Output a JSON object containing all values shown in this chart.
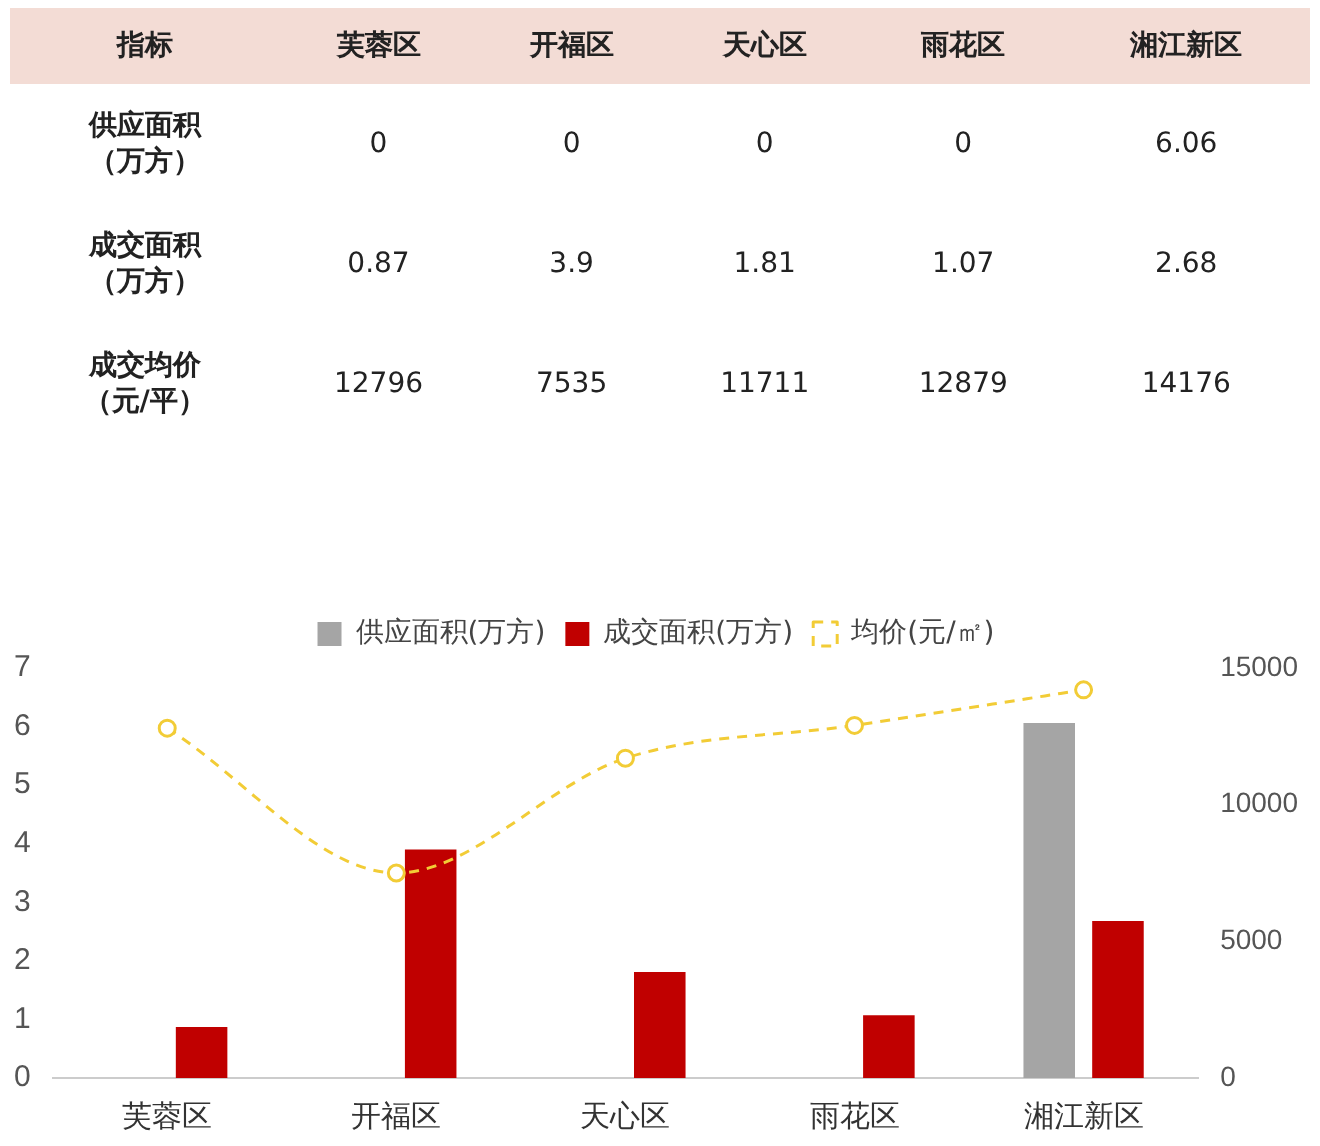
{
  "chart_data": [
    {
      "type": "other",
      "ylabel": "指标",
      "categories": [
        "芙蓉区",
        "开福区",
        "天心区",
        "雨花区",
        "湘江新区"
      ],
      "data_labels": true,
      "series": [
        {
          "name": "供应面积（万方）",
          "values": [
            0,
            0,
            0,
            0,
            6.06
          ]
        },
        {
          "name": "成交面积（万方）",
          "values": [
            0.87,
            3.9,
            1.81,
            1.07,
            2.68
          ]
        },
        {
          "name": "成交均价（元/平）",
          "values": [
            12796,
            7535,
            11711,
            12879,
            14176
          ]
        }
      ]
    },
    {
      "type": "bar",
      "categories": [
        "芙蓉区",
        "开福区",
        "天心区",
        "雨花区",
        "湘江新区"
      ],
      "series": [
        {
          "name": "供应面积(万方)",
          "color": "#a5a5a5",
          "values": [
            0,
            0,
            0,
            0,
            6.06
          ]
        },
        {
          "name": "成交面积(万方)",
          "color": "#c00000",
          "values": [
            0.87,
            3.9,
            1.81,
            1.07,
            2.68
          ]
        },
        {
          "name": "均价(元/㎡)",
          "type": "line",
          "axis": "y2",
          "color": "#f2cc36",
          "values": [
            12800,
            7500,
            11700,
            12900,
            14200
          ],
          "marker": "circle",
          "line_style": "dashed"
        }
      ],
      "ylim": [
        0,
        7
      ],
      "yticks": [
        0,
        1,
        2,
        3,
        4,
        5,
        6,
        7
      ],
      "y2lim": [
        0,
        15000
      ],
      "y2ticks": [
        0,
        5000,
        10000,
        15000
      ],
      "legend": "top"
    }
  ]
}
